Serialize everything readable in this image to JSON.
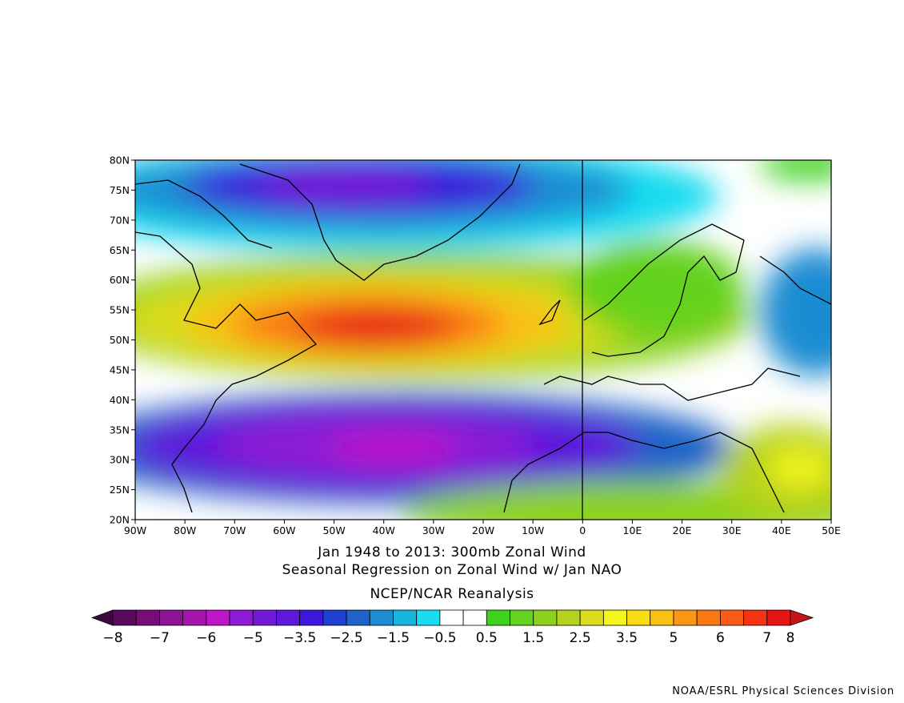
{
  "map": {
    "lat_labels": [
      "80N",
      "75N",
      "70N",
      "65N",
      "60N",
      "55N",
      "50N",
      "45N",
      "40N",
      "35N",
      "30N",
      "25N",
      "20N"
    ],
    "lon_labels": [
      "90W",
      "80W",
      "70W",
      "60W",
      "50W",
      "40W",
      "30W",
      "20W",
      "10W",
      "0",
      "10E",
      "20E",
      "30E",
      "40E",
      "50E"
    ]
  },
  "title": {
    "line1": "Jan 1948 to 2013: 300mb Zonal Wind",
    "line2": "Seasonal Regression on Zonal Wind  w/ Jan NAO",
    "line3": "NCEP/NCAR Reanalysis"
  },
  "colorbar": {
    "labels": [
      "−8",
      "−7",
      "−6",
      "−5",
      "−3.5",
      "−2.5",
      "−1.5",
      "−0.5",
      "0.5",
      "1.5",
      "2.5",
      "3.5",
      "5",
      "6",
      "7",
      "8"
    ],
    "colors": [
      "#5a0a5e",
      "#780c78",
      "#8e1196",
      "#a514ad",
      "#c015c8",
      "#8e1cd4",
      "#7418d8",
      "#5f18dc",
      "#3d18dc",
      "#1e40d2",
      "#1e64c8",
      "#1e8cd2",
      "#18b4e0",
      "#18dcf0",
      "#ffffff",
      "#ffffff",
      "#3cd21e",
      "#64d21e",
      "#8cd21e",
      "#b4d21e",
      "#dcdc1e",
      "#f5f51e",
      "#fadc14",
      "#fac014",
      "#fa9614",
      "#fa7814",
      "#fa5a14",
      "#f53214",
      "#e61414"
    ],
    "under_color": "#3c0a41",
    "over_color": "#c81414"
  },
  "credit": "NOAA/ESRL Physical Sciences Division"
}
